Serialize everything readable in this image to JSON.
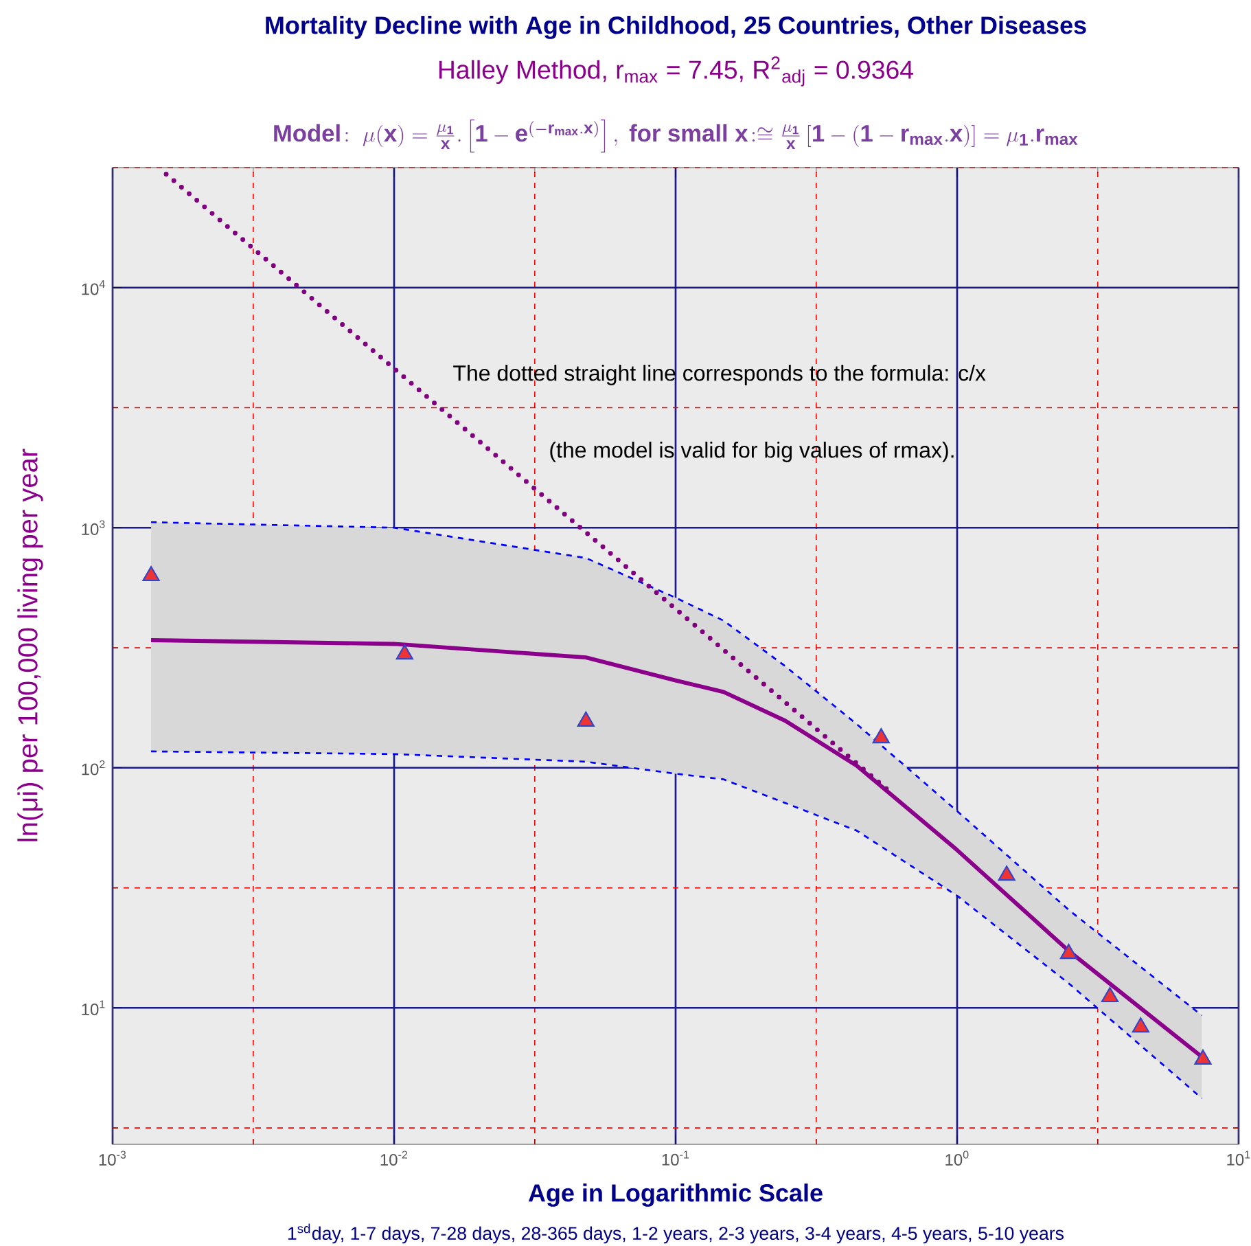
{
  "chart_data": {
    "type": "line",
    "title": "Mortality Decline with Age in Childhood, 25 Countries, Other Diseases",
    "subtitle": "Halley Method,  r$_{max}$ = 7.45,  R$^{2}$$_{adj}$ = 0.9364",
    "xlabel": "Age in Logarithmic Scale",
    "ylabel": "ln(μi) per 100,000 living per year",
    "annotations": [
      "\\mathbf{Model\\!:\\ \\mu(x)=\\frac{\\mu_1}{x}.\\left[1-e^{(-r_{max}.x)}\\right],\\ for\\ small\\ x\\!:\\cong\\frac{\\mu_1}{x}\\left[1-(1-r_{max}.x)\\right]=\\mu_1.r_{max}}",
      "The dotted straight line corresponds to the formula: c/x",
      "(the model is valid for big values of rmax).",
      "1$^{sd}$day, 1-7 days, 7-28 days, 28-365 days, 1-2 years, 2-3 years, 3-4 years, 4-5 years, 5-10 years"
    ],
    "log": "xy",
    "grid": true,
    "xlim": [
      0.001,
      10
    ],
    "ylim": [
      2.7,
      31623
    ],
    "xticks": [
      {
        "value": 0.001,
        "label": "10$^{-3}$"
      },
      {
        "value": 0.00316,
        "label": null
      },
      {
        "value": 0.01,
        "label": "10$^{-2}$"
      },
      {
        "value": 0.0316,
        "label": null
      },
      {
        "value": 0.1,
        "label": "10$^{-1}$"
      },
      {
        "value": 0.316,
        "label": null
      },
      {
        "value": 1,
        "label": "10$^{0}$"
      },
      {
        "value": 3.16,
        "label": null
      },
      {
        "value": 10,
        "label": "10$^{1}$"
      }
    ],
    "yticks": [
      {
        "value": 3.16,
        "label": null
      },
      {
        "value": 10,
        "label": "10$^{1}$"
      },
      {
        "value": 31.6,
        "label": null
      },
      {
        "value": 100,
        "label": "10$^{2}$"
      },
      {
        "value": 316,
        "label": null
      },
      {
        "value": 1000,
        "label": "10$^{3}$"
      },
      {
        "value": 3162,
        "label": null
      },
      {
        "value": 10000,
        "label": "10$^{4}$"
      },
      {
        "value": 31623,
        "label": null
      }
    ],
    "series": [
      {
        "color": "#8b008b",
        "x": [
          0.00137,
          0.01,
          0.048,
          0.1,
          0.148,
          0.245,
          0.44,
          1.0,
          2.5,
          7.4
        ],
        "values": [
          340,
          328,
          288,
          231,
          207,
          157,
          102,
          45.4,
          17.2,
          6.25
        ],
        "upper": [
          1054,
          1000,
          748,
          511,
          410,
          265,
          152,
          66,
          25.5,
          9.3
        ],
        "lower": [
          117,
          114,
          106,
          94.4,
          89.5,
          71.3,
          54.7,
          29.3,
          12.6,
          4.2
        ]
      },
      {
        "type": "line",
        "color": "#0000ff",
        "line_style": "dashed",
        "x": [
          0.00137,
          0.01,
          0.048,
          0.1,
          0.148,
          0.245,
          0.44,
          1.0,
          2.5,
          7.4
        ],
        "values": [
          1054,
          1000,
          748,
          511,
          410,
          265,
          152,
          66,
          25.5,
          9.3
        ]
      },
      {
        "type": "line",
        "color": "#0000ff",
        "line_style": "dashed",
        "x": [
          0.00137,
          0.01,
          0.048,
          0.1,
          0.148,
          0.245,
          0.44,
          1.0,
          2.5,
          7.4
        ],
        "values": [
          117,
          114,
          106,
          94.4,
          89.5,
          71.3,
          54.7,
          29.3,
          12.6,
          4.2
        ]
      },
      {
        "color": "#800080",
        "line_style": "dotted",
        "x": [
          0.00155,
          0.57
        ],
        "values": [
          29700,
          80.4
        ]
      },
      {
        "type": "scatter",
        "color": "#ee3333",
        "marker": "triangle",
        "x": [
          0.00137,
          0.0109,
          0.048,
          0.537,
          1.5,
          2.49,
          3.49,
          4.49,
          7.47
        ],
        "values": [
          630,
          297,
          156,
          133,
          35.6,
          16.8,
          11.1,
          8.3,
          6.1
        ]
      }
    ]
  }
}
